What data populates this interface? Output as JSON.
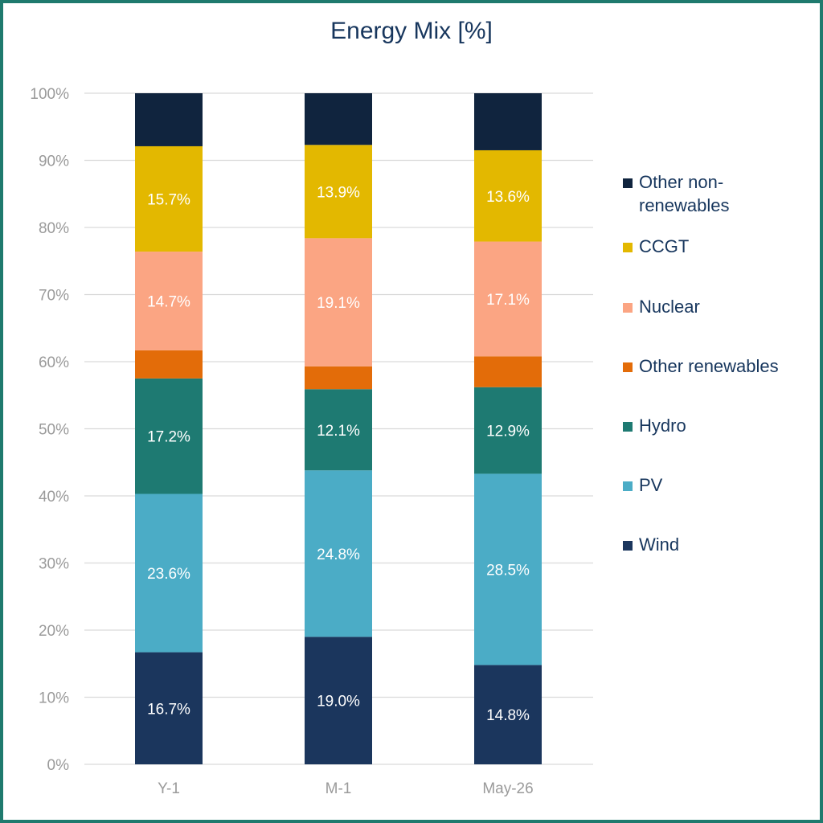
{
  "chart_data": {
    "type": "bar",
    "stacked": true,
    "title": "Energy Mix [%]",
    "categories": [
      "Y-1",
      "M-1",
      "May-26"
    ],
    "ylim": [
      0,
      100
    ],
    "yticks": [
      "0%",
      "10%",
      "20%",
      "30%",
      "40%",
      "50%",
      "60%",
      "70%",
      "80%",
      "90%",
      "100%"
    ],
    "grid": true,
    "legend_position": "right",
    "series": [
      {
        "name": "Wind",
        "color": "#1b365d",
        "values": [
          16.7,
          19.0,
          14.8
        ],
        "labels": [
          "16.7%",
          "19.0%",
          "14.8%"
        ]
      },
      {
        "name": "PV",
        "color": "#4bacc6",
        "values": [
          23.6,
          24.8,
          28.5
        ],
        "labels": [
          "23.6%",
          "24.8%",
          "28.5%"
        ]
      },
      {
        "name": "Hydro",
        "color": "#1e7a72",
        "values": [
          17.2,
          12.1,
          12.9
        ],
        "labels": [
          "17.2%",
          "12.1%",
          "12.9%"
        ]
      },
      {
        "name": "Other renewables",
        "color": "#e36c09",
        "values": [
          4.2,
          3.4,
          4.6
        ],
        "labels": [
          "",
          "",
          ""
        ]
      },
      {
        "name": "Nuclear",
        "color": "#fba583",
        "values": [
          14.7,
          19.1,
          17.1
        ],
        "labels": [
          "14.7%",
          "19.1%",
          "17.1%"
        ]
      },
      {
        "name": "CCGT",
        "color": "#e3b800",
        "values": [
          15.7,
          13.9,
          13.6
        ],
        "labels": [
          "15.7%",
          "13.9%",
          "13.6%"
        ]
      },
      {
        "name": "Other non-renewables",
        "color": "#10243e",
        "values": [
          7.9,
          7.7,
          8.5
        ],
        "labels": [
          "",
          "",
          ""
        ]
      }
    ],
    "legend_order": [
      "Other non-renewables",
      "CCGT",
      "Nuclear",
      "Other renewables",
      "Hydro",
      "PV",
      "Wind"
    ]
  }
}
